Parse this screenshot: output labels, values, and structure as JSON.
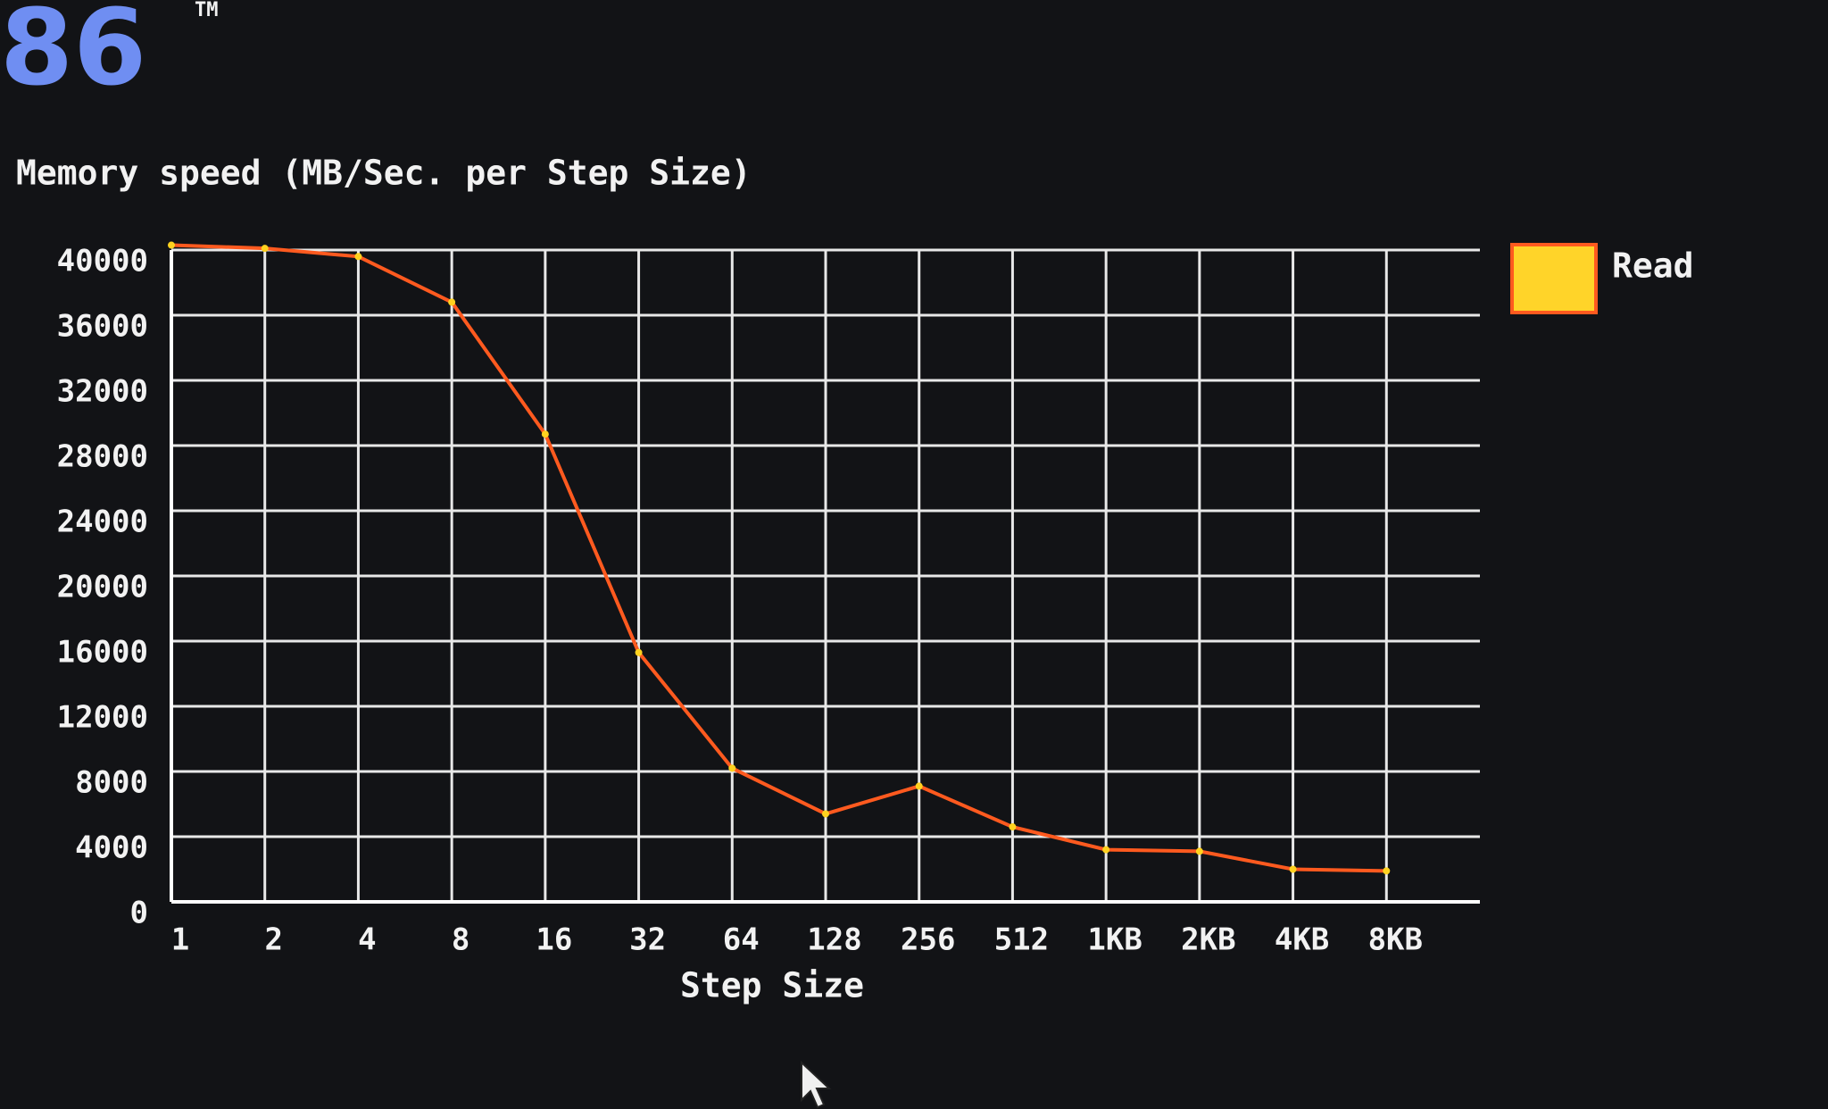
{
  "header": {
    "logo": "86",
    "trademark": "TM"
  },
  "chart_data": {
    "type": "line",
    "title": "Memory speed (MB/Sec. per Step Size)",
    "x_label": "Step Size",
    "categories": [
      "1",
      "2",
      "4",
      "8",
      "16",
      "32",
      "64",
      "128",
      "256",
      "512",
      "1KB",
      "2KB",
      "4KB",
      "8KB"
    ],
    "series": [
      {
        "name": "Read",
        "color": "#ff5a1f",
        "values": [
          40300,
          40100,
          39600,
          36800,
          28700,
          15300,
          8200,
          5400,
          7100,
          4600,
          3200,
          3100,
          2000,
          1900
        ]
      }
    ],
    "ylim": [
      0,
      40000
    ],
    "yticks": [
      0,
      4000,
      8000,
      12000,
      16000,
      20000,
      24000,
      28000,
      32000,
      36000,
      40000
    ],
    "grid": true,
    "legend": "right"
  }
}
